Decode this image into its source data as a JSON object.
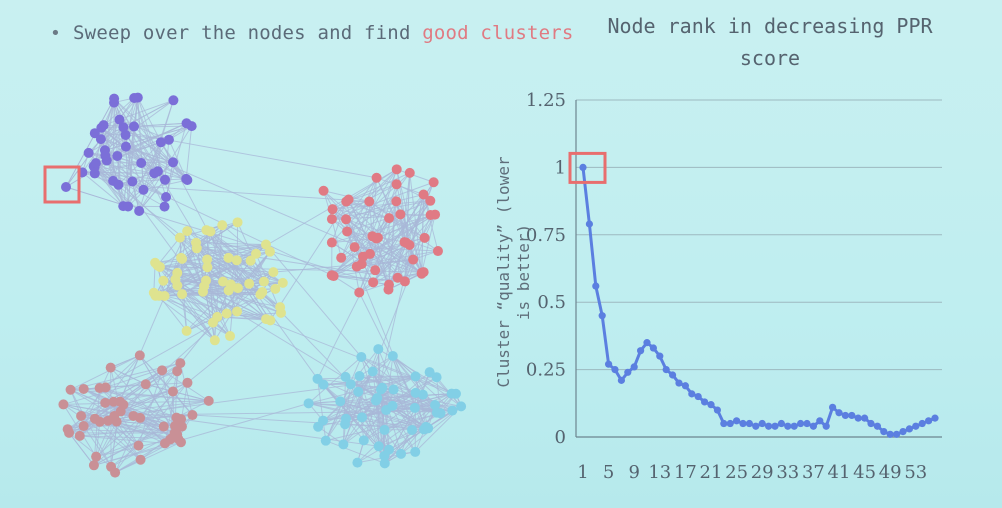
{
  "slide": {
    "bullet_text": "Sweep over the nodes and find ",
    "bullet_highlight": "good clusters",
    "highlight_color": "#e07a82"
  },
  "chart_data": {
    "type": "line",
    "title": "Node rank in decreasing PPR score",
    "ylabel_line1": "Cluster “quality” (lower",
    "ylabel_line2": "is better)",
    "ylim": [
      0,
      1.25
    ],
    "ytick_labels": [
      "0",
      "0.25",
      "0.5",
      "0.75",
      "1",
      "1.25"
    ],
    "ytick_values": [
      0,
      0.25,
      0.5,
      0.75,
      1,
      1.25
    ],
    "xtick_labels": [
      "1",
      "5",
      "9",
      "13",
      "17",
      "21",
      "25",
      "29",
      "33",
      "37",
      "41",
      "45",
      "49",
      "53"
    ],
    "x": [
      1,
      2,
      3,
      4,
      5,
      6,
      7,
      8,
      9,
      10,
      11,
      12,
      13,
      14,
      15,
      16,
      17,
      18,
      19,
      20,
      21,
      22,
      23,
      24,
      25,
      26,
      27,
      28,
      29,
      30,
      31,
      32,
      33,
      34,
      35,
      36,
      37,
      38,
      39,
      40,
      41,
      42,
      43,
      44,
      45,
      46,
      47,
      48,
      49,
      50,
      51,
      52,
      53,
      54,
      55,
      56
    ],
    "values": [
      1.0,
      0.79,
      0.56,
      0.45,
      0.27,
      0.25,
      0.21,
      0.24,
      0.26,
      0.32,
      0.35,
      0.33,
      0.3,
      0.25,
      0.23,
      0.2,
      0.19,
      0.16,
      0.15,
      0.13,
      0.12,
      0.1,
      0.05,
      0.05,
      0.06,
      0.05,
      0.05,
      0.04,
      0.05,
      0.04,
      0.04,
      0.05,
      0.04,
      0.04,
      0.05,
      0.05,
      0.04,
      0.06,
      0.04,
      0.11,
      0.09,
      0.08,
      0.08,
      0.07,
      0.07,
      0.05,
      0.04,
      0.02,
      0.01,
      0.01,
      0.02,
      0.03,
      0.04,
      0.05,
      0.06,
      0.07
    ],
    "line_color": "#5b7fe0",
    "grid": true,
    "highlight_point": 1,
    "highlight_color": "#e86e6e"
  },
  "graph": {
    "clusters": [
      {
        "name": "purple",
        "color": "#7b6fd8"
      },
      {
        "name": "yellow",
        "color": "#dfe38f"
      },
      {
        "name": "red",
        "color": "#e07a84"
      },
      {
        "name": "brown",
        "color": "#c99096"
      },
      {
        "name": "cyan",
        "color": "#82cfe6"
      }
    ],
    "edge_color": "#a9b8d8",
    "seed_box_color": "#e86e6e"
  }
}
